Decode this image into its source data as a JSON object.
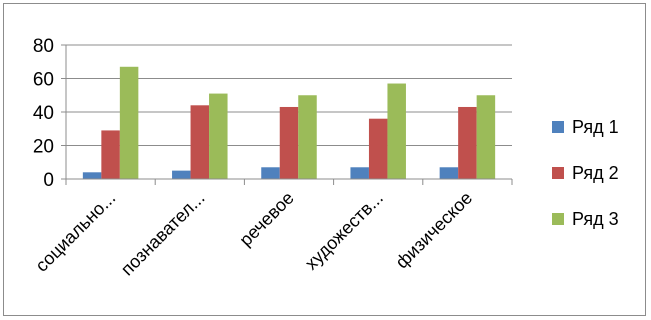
{
  "chart_data": {
    "type": "bar",
    "categories": [
      "социально...",
      "познавател...",
      "речевое",
      "художеств...",
      "физическое"
    ],
    "series": [
      {
        "name": "Ряд 1",
        "color": "#4F81BD",
        "values": [
          4,
          5,
          7,
          7,
          7
        ]
      },
      {
        "name": "Ряд 2",
        "color": "#C0504D",
        "values": [
          29,
          44,
          43,
          36,
          43
        ]
      },
      {
        "name": "Ряд 3",
        "color": "#9BBB59",
        "values": [
          67,
          51,
          50,
          57,
          50
        ]
      }
    ],
    "title": "",
    "xlabel": "",
    "ylabel": "",
    "ylim": [
      0,
      80
    ],
    "yticks": [
      "0",
      "20",
      "40",
      "60",
      "80"
    ],
    "grid": true,
    "legend_position": "right"
  }
}
